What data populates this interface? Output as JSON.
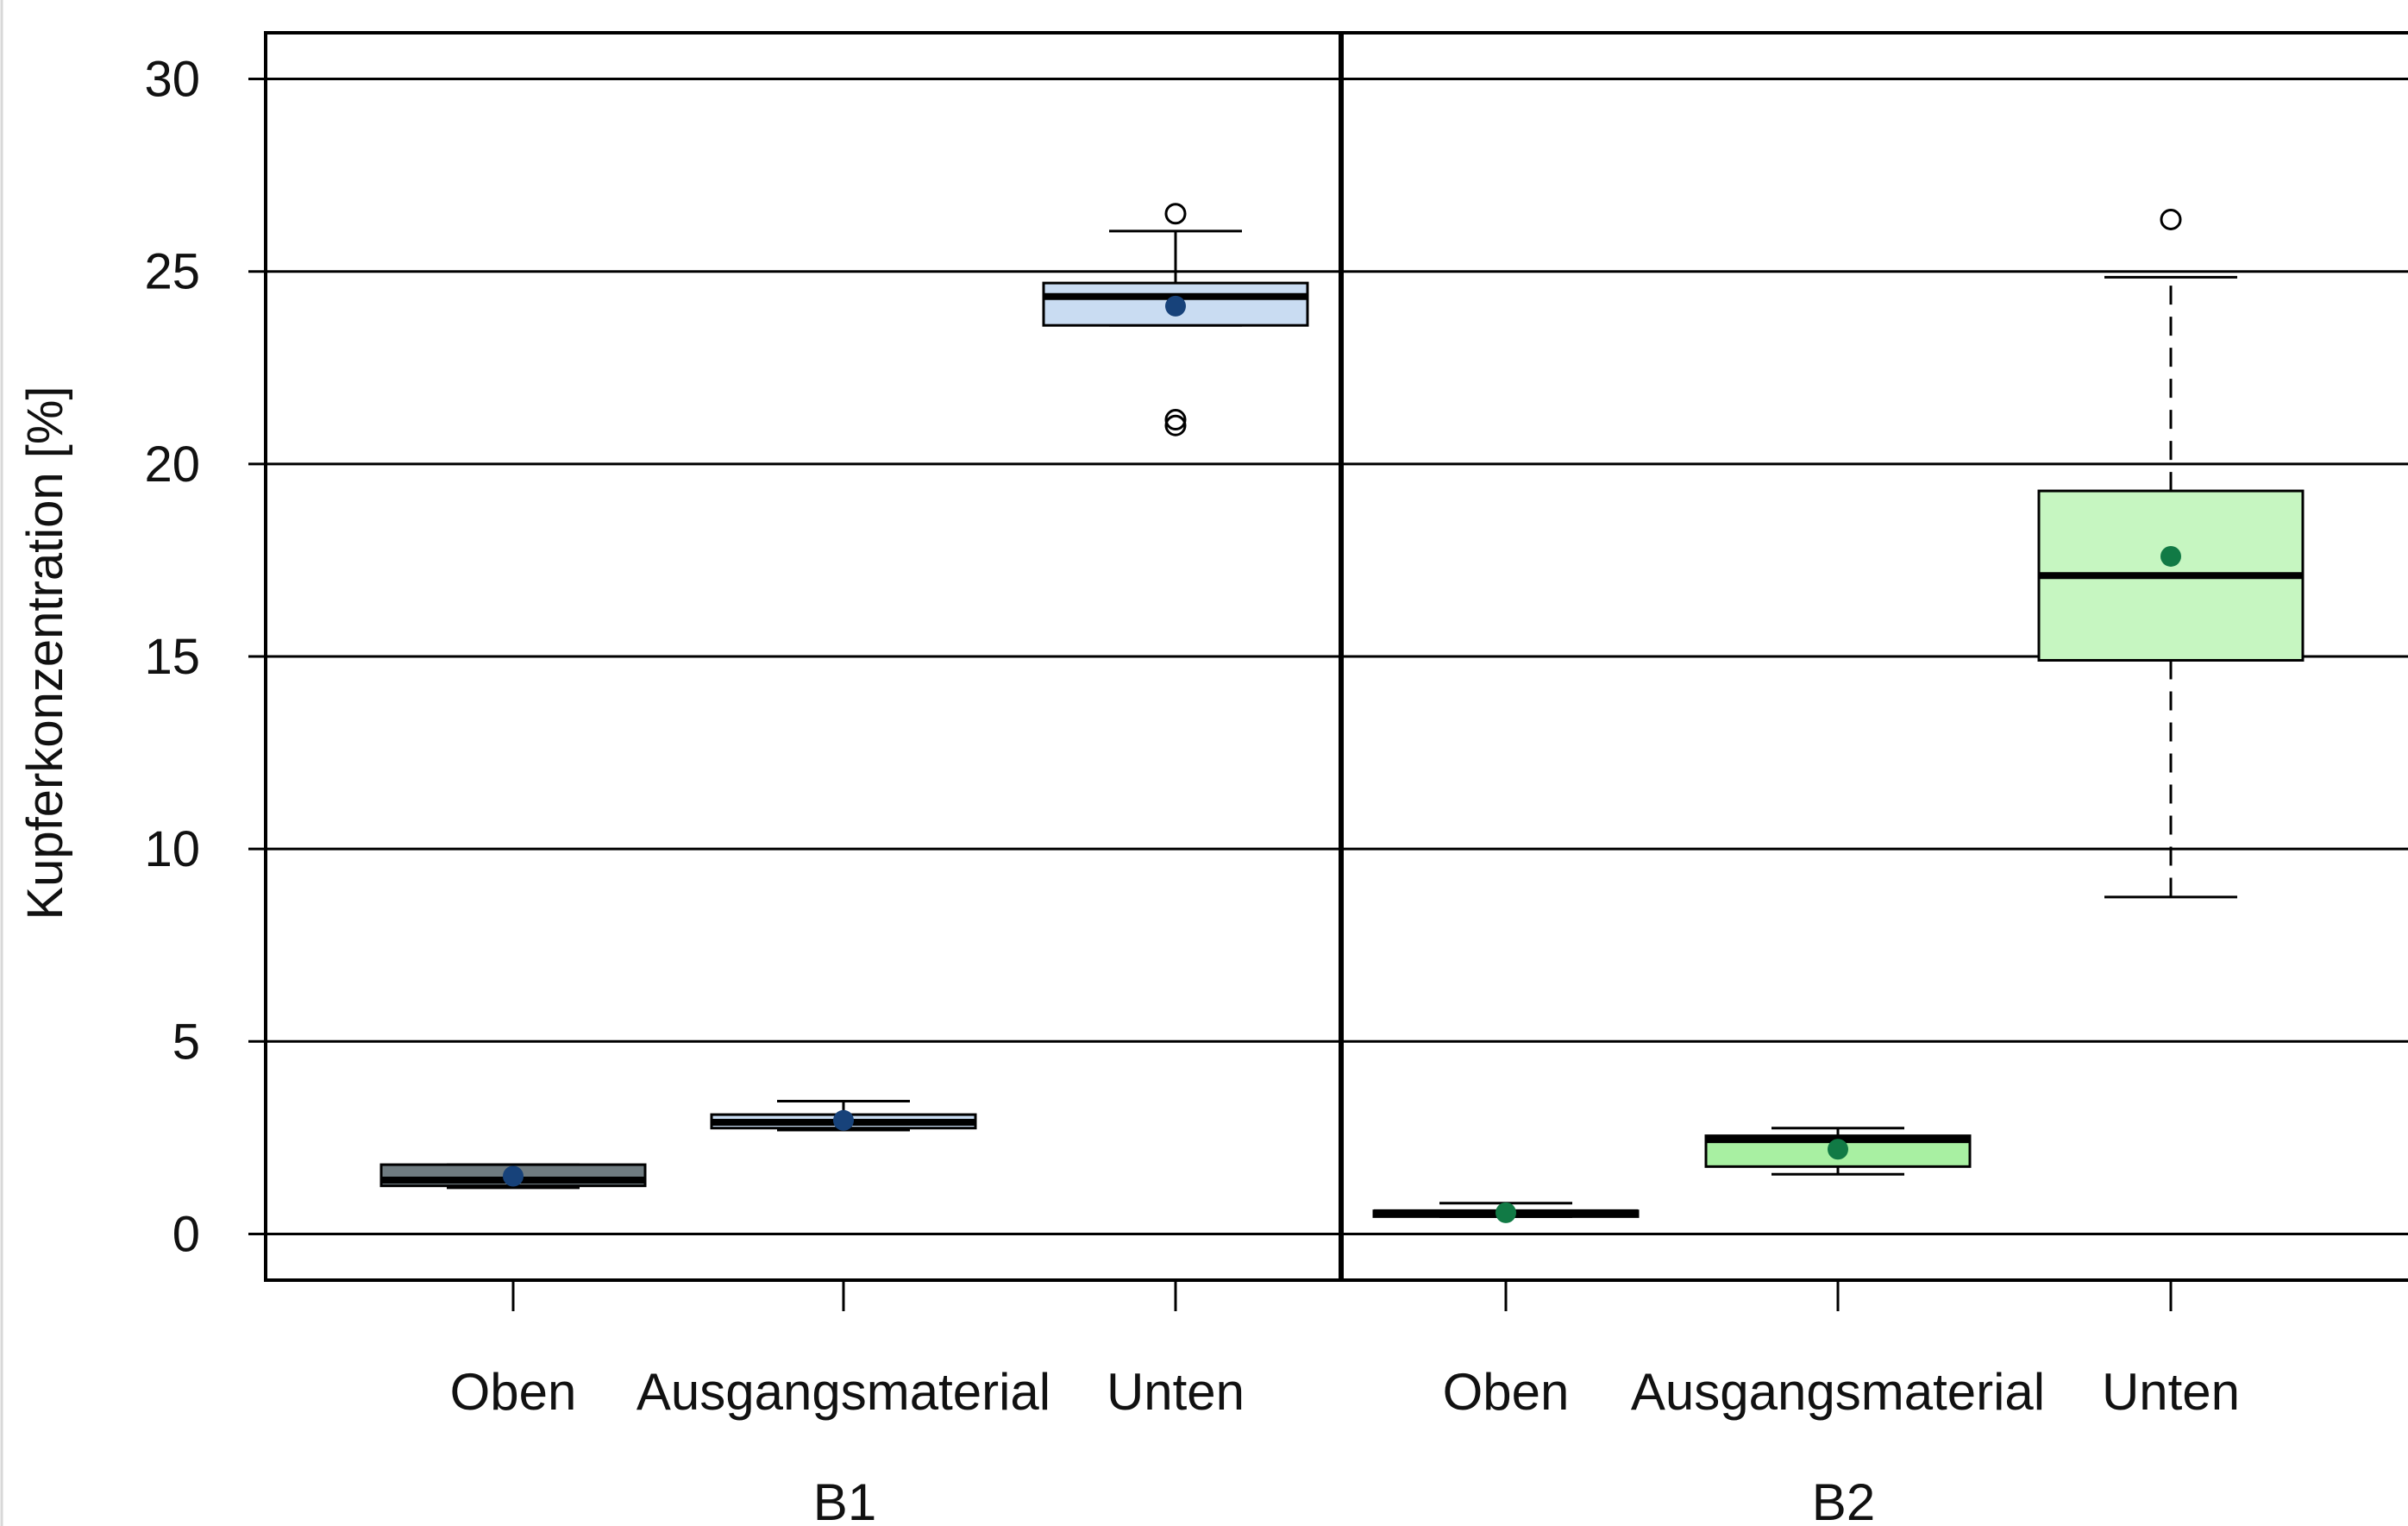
{
  "chart_data": {
    "type": "boxplot",
    "title": "",
    "xlabel": "",
    "ylabel": "Kupferkonzentration [%]",
    "ylim": [
      -1.2,
      31.2
    ],
    "yticks": [
      0,
      5,
      10,
      15,
      20,
      25,
      30
    ],
    "grid": true,
    "groups": [
      {
        "name": "B1",
        "boxes": [
          {
            "category": "Oben",
            "whisker_low": 1.2,
            "q1": 1.25,
            "median": 1.4,
            "q3": 1.8,
            "whisker_high": 1.8,
            "mean": 1.5,
            "outliers": [],
            "fill": "#6f7b80",
            "mean_color": "#17427a",
            "dashed_whiskers": false
          },
          {
            "category": "Ausgangsmaterial",
            "whisker_low": 2.7,
            "q1": 2.75,
            "median": 2.9,
            "q3": 3.1,
            "whisker_high": 3.45,
            "mean": 2.95,
            "outliers": [],
            "fill": "#c9dcf2",
            "mean_color": "#17427a",
            "dashed_whiskers": false
          },
          {
            "category": "Unten",
            "whisker_low": 23.6,
            "q1": 23.6,
            "median": 24.35,
            "q3": 24.7,
            "whisker_high": 26.05,
            "mean": 24.1,
            "outliers": [
              26.5,
              21.0,
              21.15
            ],
            "fill": "#c9dcf2",
            "mean_color": "#17427a",
            "dashed_whiskers": false
          }
        ]
      },
      {
        "name": "B2",
        "boxes": [
          {
            "category": "Oben",
            "whisker_low": 0.45,
            "q1": 0.45,
            "median": 0.55,
            "q3": 0.6,
            "whisker_high": 0.8,
            "mean": 0.55,
            "outliers": [],
            "fill": "#c6f6c1",
            "mean_color": "#117a45",
            "dashed_whiskers": false
          },
          {
            "category": "Ausgangsmaterial",
            "whisker_low": 1.55,
            "q1": 1.75,
            "median": 2.45,
            "q3": 2.55,
            "whisker_high": 2.75,
            "mean": 2.2,
            "outliers": [],
            "fill": "#a8f0a2",
            "mean_color": "#117a45",
            "dashed_whiskers": false
          },
          {
            "category": "Unten",
            "whisker_low": 8.75,
            "q1": 14.9,
            "median": 17.1,
            "q3": 19.3,
            "whisker_high": 24.85,
            "mean": 17.6,
            "outliers": [
              26.35
            ],
            "fill": "#c6f6c1",
            "mean_color": "#117a45",
            "dashed_whiskers": true
          }
        ]
      }
    ]
  }
}
